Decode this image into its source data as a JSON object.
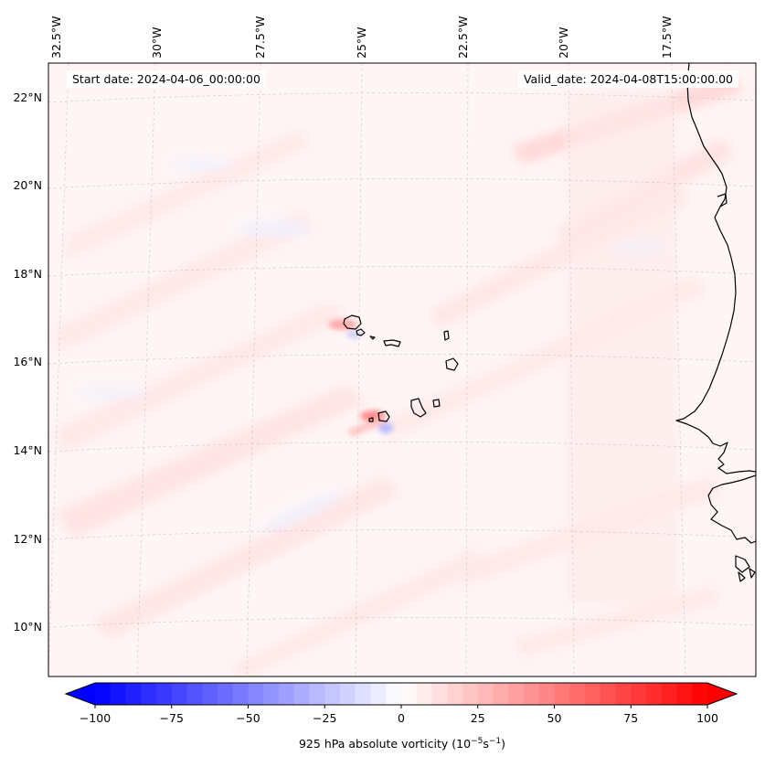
{
  "map": {
    "start_label": "Start date: 2024-04-06_00:00:00",
    "valid_label": "Valid_date: 2024-04-08T15:00:00.00",
    "lon_labels": [
      "32.5°W",
      "30°W",
      "27.5°W",
      "25°W",
      "22.5°W",
      "20°W",
      "17.5°W"
    ],
    "lat_labels": [
      "22°N",
      "20°N",
      "18°N",
      "16°N",
      "14°N",
      "12°N",
      "10°N"
    ],
    "extent": {
      "lon_min": -32.8,
      "lon_max": -15.7,
      "lat_min": 8.9,
      "lat_max": 22.8
    },
    "projection": "lambert-conformal",
    "gridlines": true,
    "features": [
      "Cabo Verde islands",
      "West African coastline"
    ]
  },
  "colorbar": {
    "label_prefix": "925 hPa absolute vorticity (10",
    "label_exp1": "−5",
    "label_mid": "s",
    "label_exp2": "−1",
    "label_suffix": ")",
    "ticks": [
      "−100",
      "−75",
      "−50",
      "−25",
      "0",
      "25",
      "50",
      "75",
      "100"
    ],
    "min": -100,
    "max": 100,
    "step": 5,
    "colormap": "bwr",
    "colors": {
      "negative": "#0000ff",
      "zero": "#ffffff",
      "positive": "#ff0000"
    }
  }
}
